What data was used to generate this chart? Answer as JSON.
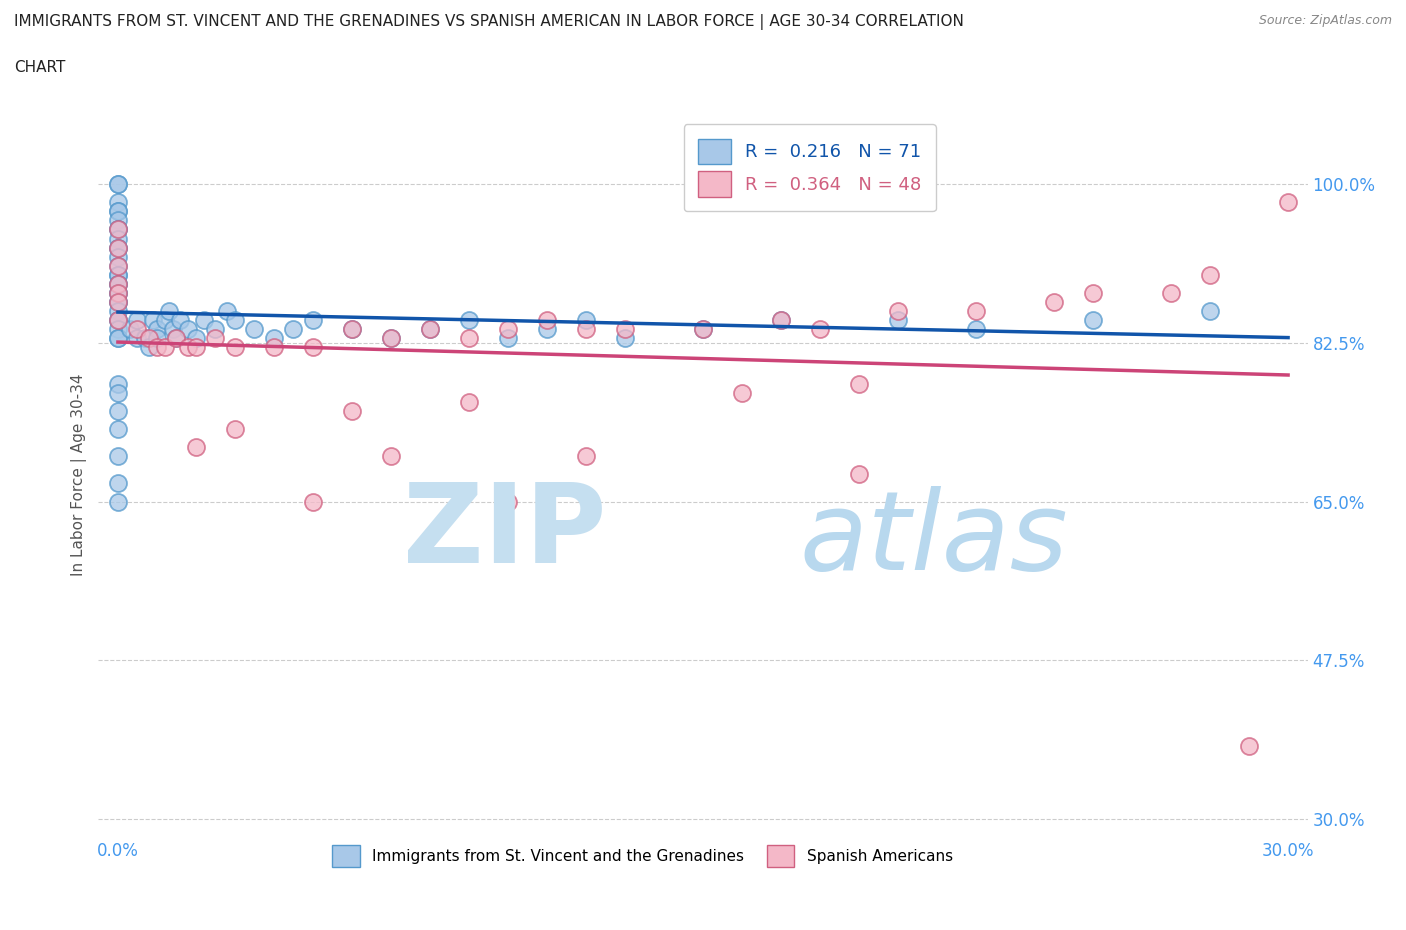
{
  "title_line1": "IMMIGRANTS FROM ST. VINCENT AND THE GRENADINES VS SPANISH AMERICAN IN LABOR FORCE | AGE 30-34 CORRELATION",
  "title_line2": "CHART",
  "source": "Source: ZipAtlas.com",
  "ylabel": "In Labor Force | Age 30-34",
  "xlim": [
    -0.005,
    0.305
  ],
  "ylim": [
    0.28,
    1.08
  ],
  "xtick_positions": [
    0.0,
    0.05,
    0.1,
    0.15,
    0.2,
    0.25,
    0.3
  ],
  "xtick_labels": [
    "0.0%",
    "",
    "",
    "",
    "",
    "",
    "30.0%"
  ],
  "ytick_positions": [
    0.3,
    0.475,
    0.65,
    0.825,
    1.0
  ],
  "ytick_labels": [
    "30.0%",
    "47.5%",
    "65.0%",
    "82.5%",
    "100.0%"
  ],
  "blue_R": 0.216,
  "blue_N": 71,
  "pink_R": 0.364,
  "pink_N": 48,
  "blue_color": "#a8c8e8",
  "blue_edge": "#5599cc",
  "pink_color": "#f4b8c8",
  "pink_edge": "#d06080",
  "blue_line_color": "#1155aa",
  "pink_line_color": "#cc4477",
  "legend_label_blue": "Immigrants from St. Vincent and the Grenadines",
  "legend_label_pink": "Spanish Americans",
  "background_color": "#ffffff",
  "grid_color": "#cccccc",
  "title_color": "#222222",
  "axis_tick_color": "#4499ee",
  "watermark_zip_color": "#c5dff0",
  "watermark_atlas_color": "#b8d8ee",
  "blue_x": [
    0.0,
    0.0,
    0.0,
    0.0,
    0.0,
    0.0,
    0.0,
    0.0,
    0.0,
    0.0,
    0.0,
    0.0,
    0.0,
    0.0,
    0.0,
    0.0,
    0.0,
    0.0,
    0.0,
    0.0,
    0.0,
    0.0,
    0.0,
    0.0,
    0.0,
    0.0,
    0.0,
    0.003,
    0.005,
    0.005,
    0.007,
    0.008,
    0.009,
    0.01,
    0.01,
    0.012,
    0.013,
    0.014,
    0.015,
    0.016,
    0.018,
    0.02,
    0.022,
    0.025,
    0.028,
    0.03,
    0.035,
    0.04,
    0.045,
    0.05,
    0.06,
    0.07,
    0.08,
    0.09,
    0.1,
    0.11,
    0.12,
    0.13,
    0.15,
    0.17,
    0.2,
    0.22,
    0.25,
    0.28,
    0.0,
    0.0,
    0.0,
    0.0,
    0.0,
    0.0,
    0.0
  ],
  "blue_y": [
    1.0,
    1.0,
    0.98,
    0.97,
    0.97,
    0.96,
    0.95,
    0.95,
    0.94,
    0.93,
    0.93,
    0.92,
    0.91,
    0.9,
    0.9,
    0.89,
    0.89,
    0.88,
    0.88,
    0.87,
    0.87,
    0.86,
    0.85,
    0.85,
    0.84,
    0.83,
    0.83,
    0.84,
    0.85,
    0.83,
    0.83,
    0.82,
    0.85,
    0.84,
    0.83,
    0.85,
    0.86,
    0.84,
    0.83,
    0.85,
    0.84,
    0.83,
    0.85,
    0.84,
    0.86,
    0.85,
    0.84,
    0.83,
    0.84,
    0.85,
    0.84,
    0.83,
    0.84,
    0.85,
    0.83,
    0.84,
    0.85,
    0.83,
    0.84,
    0.85,
    0.85,
    0.84,
    0.85,
    0.86,
    0.78,
    0.77,
    0.75,
    0.73,
    0.7,
    0.67,
    0.65
  ],
  "pink_x": [
    0.0,
    0.0,
    0.0,
    0.0,
    0.0,
    0.0,
    0.0,
    0.005,
    0.008,
    0.01,
    0.012,
    0.015,
    0.018,
    0.02,
    0.025,
    0.03,
    0.04,
    0.05,
    0.06,
    0.07,
    0.08,
    0.09,
    0.1,
    0.11,
    0.12,
    0.13,
    0.15,
    0.17,
    0.18,
    0.2,
    0.22,
    0.24,
    0.25,
    0.27,
    0.28,
    0.3,
    0.16,
    0.19,
    0.09,
    0.06,
    0.03,
    0.02,
    0.07,
    0.12,
    0.19,
    0.29,
    0.05,
    0.1
  ],
  "pink_y": [
    0.95,
    0.93,
    0.91,
    0.89,
    0.88,
    0.87,
    0.85,
    0.84,
    0.83,
    0.82,
    0.82,
    0.83,
    0.82,
    0.82,
    0.83,
    0.82,
    0.82,
    0.82,
    0.84,
    0.83,
    0.84,
    0.83,
    0.84,
    0.85,
    0.84,
    0.84,
    0.84,
    0.85,
    0.84,
    0.86,
    0.86,
    0.87,
    0.88,
    0.88,
    0.9,
    0.98,
    0.77,
    0.78,
    0.76,
    0.75,
    0.73,
    0.71,
    0.7,
    0.7,
    0.68,
    0.38,
    0.65,
    0.65
  ]
}
